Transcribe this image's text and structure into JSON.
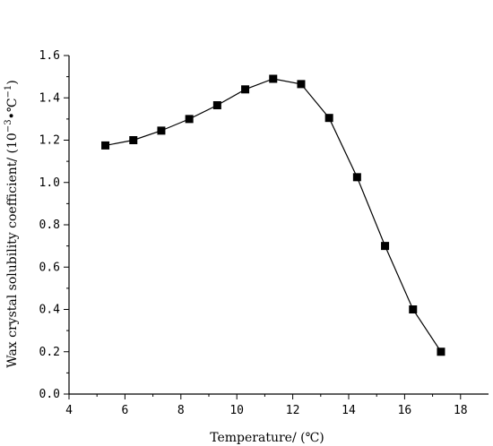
{
  "chart_data": {
    "type": "line",
    "xlabel": "Temperature/ (℃)",
    "ylabel": "Wax crystal solubility coefficient/ (10",
    "ylabel_exp1": "−3",
    "ylabel_mid": "•℃",
    "ylabel_exp2": "−1",
    "ylabel_end": ")",
    "xlim": [
      4,
      19
    ],
    "ylim": [
      0.0,
      1.6
    ],
    "x_ticks": [
      4,
      6,
      8,
      10,
      12,
      14,
      16,
      18
    ],
    "y_ticks": [
      "0.0",
      "0.2",
      "0.4",
      "0.6",
      "0.8",
      "1.0",
      "1.2",
      "1.4",
      "1.6"
    ],
    "marker": "square",
    "series": [
      {
        "x": [
          5.3,
          6.3,
          7.3,
          8.3,
          9.3,
          10.3,
          11.3,
          12.3,
          13.3,
          14.3,
          15.3,
          16.3,
          17.3
        ],
        "y": [
          1.175,
          1.2,
          1.245,
          1.3,
          1.365,
          1.44,
          1.49,
          1.465,
          1.305,
          1.025,
          0.7,
          0.4,
          0.2
        ]
      }
    ]
  }
}
